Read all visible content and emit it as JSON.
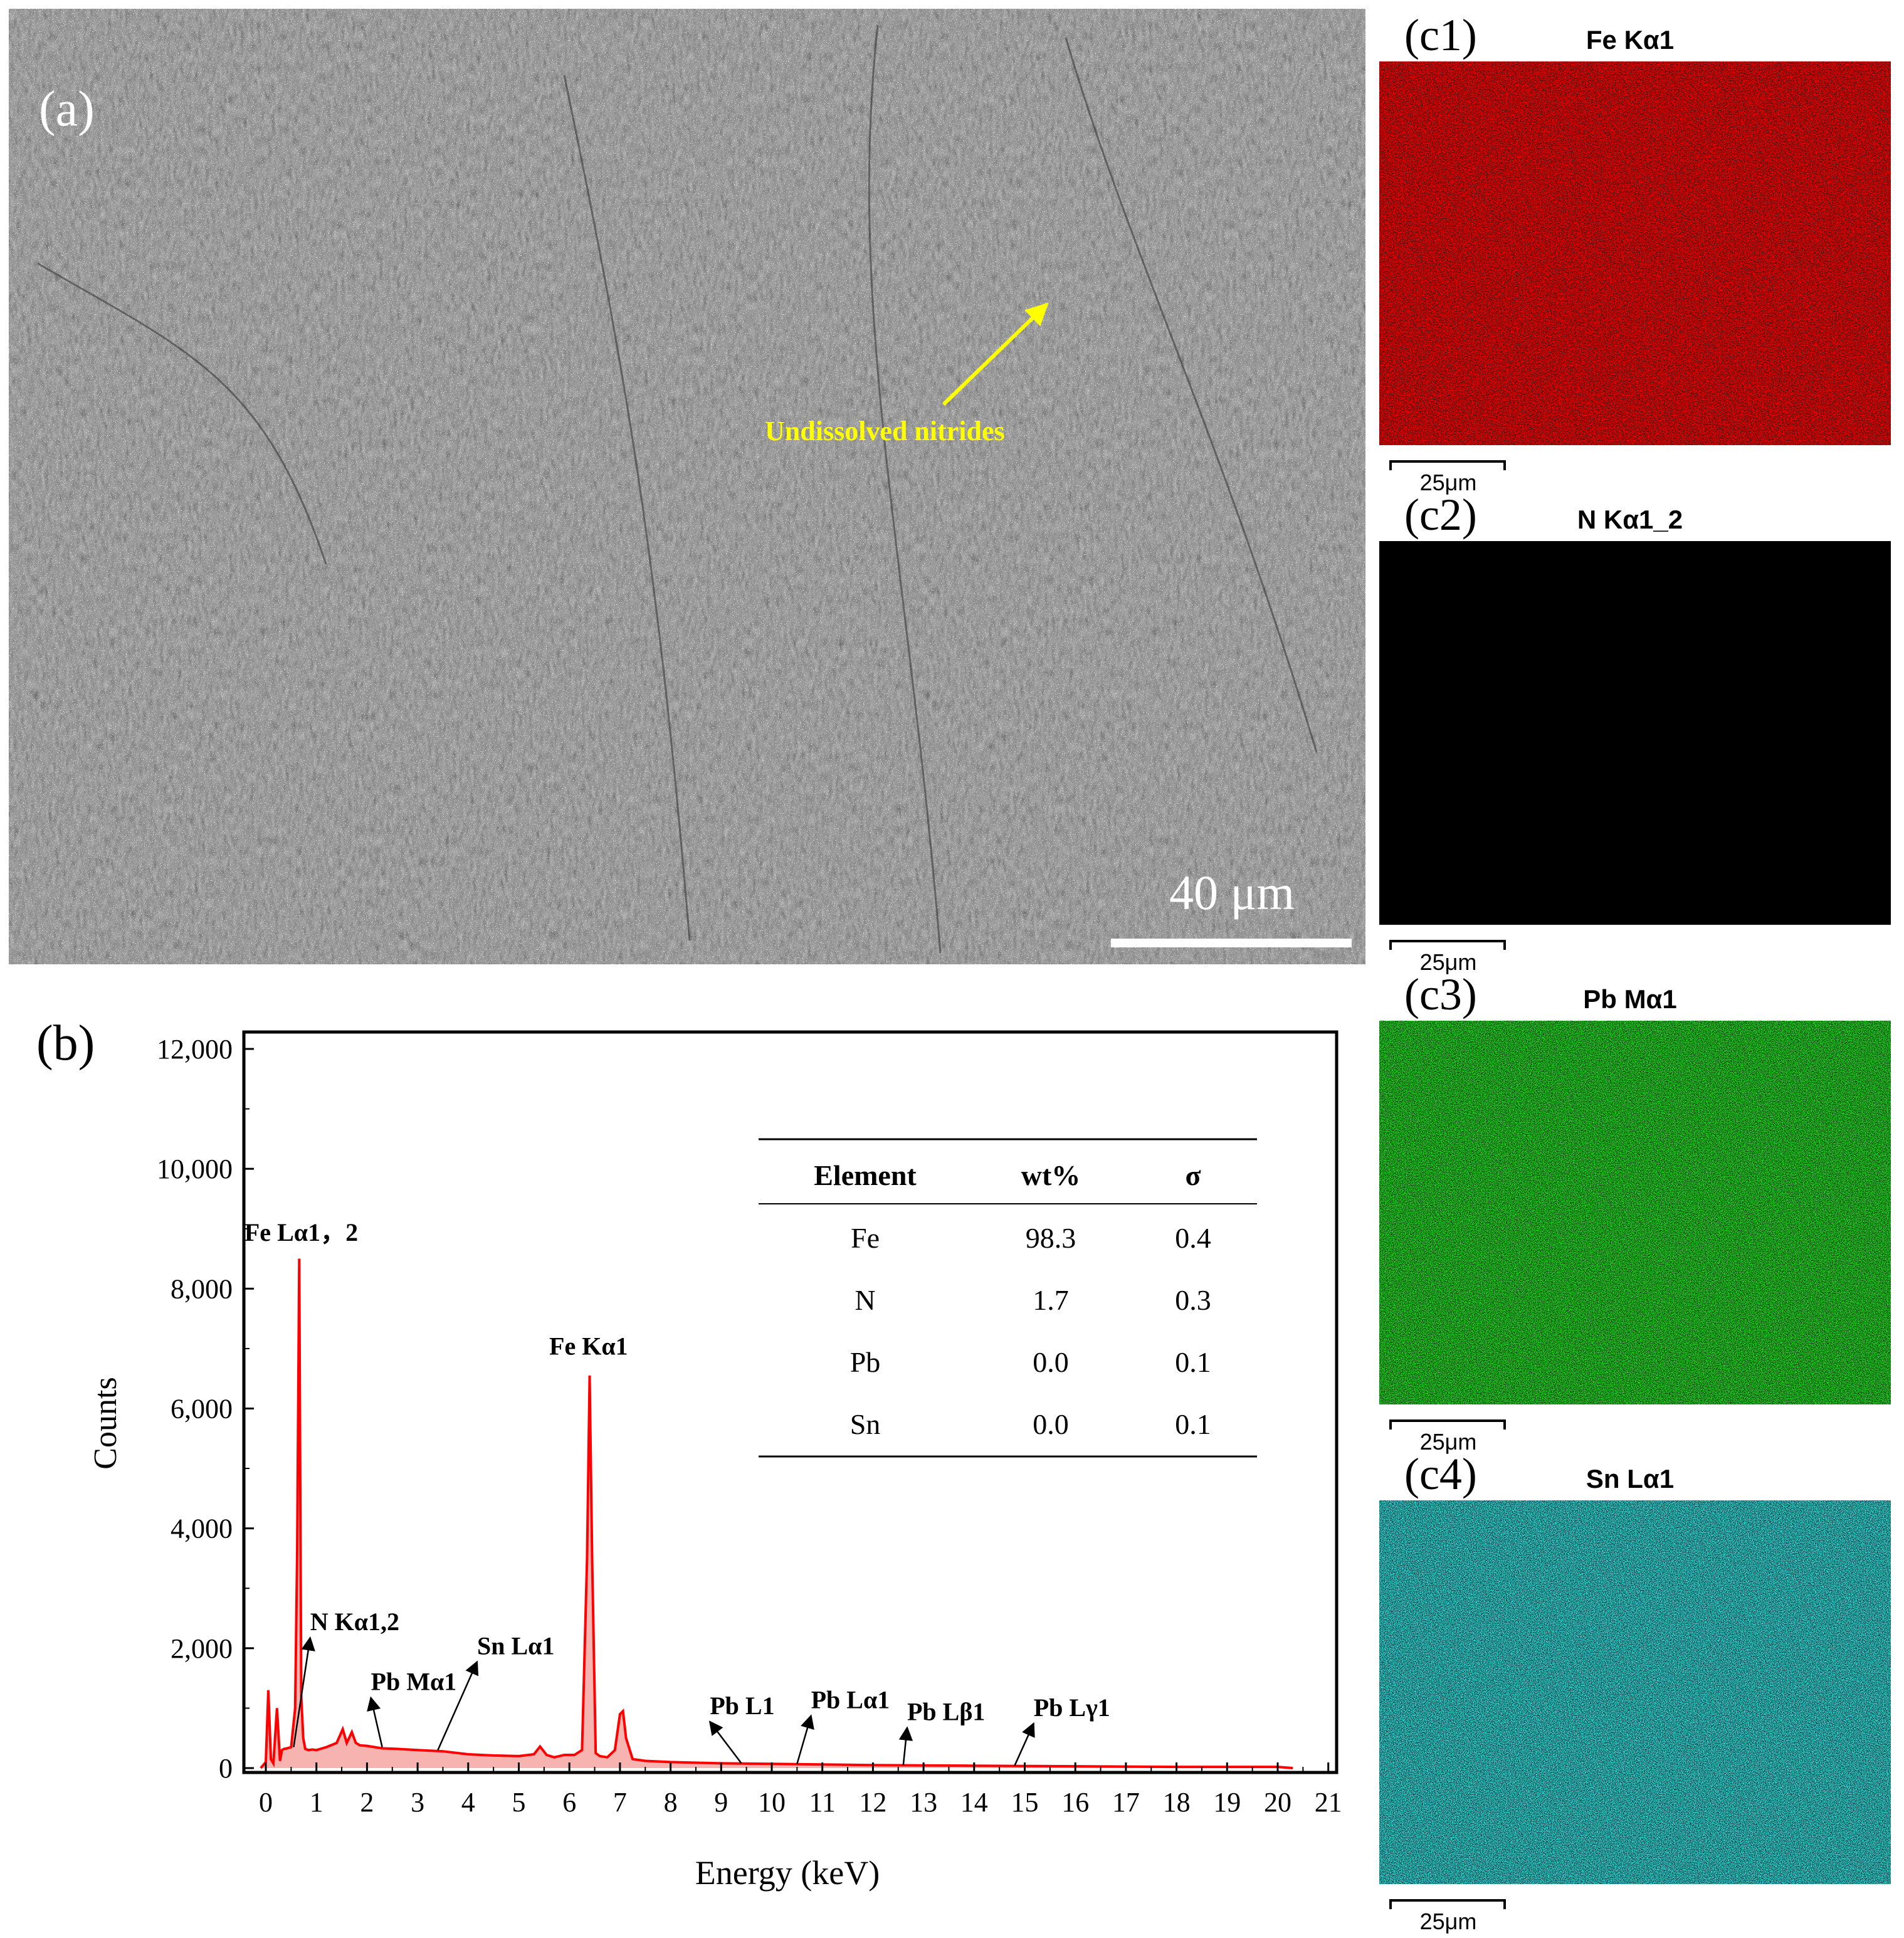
{
  "panels": {
    "a": {
      "label": "(a)",
      "annotation": "Undissolved nitrides",
      "scale_bar": "40 μm"
    },
    "b": {
      "label": "(b)"
    },
    "maps": [
      {
        "label": "(c1)",
        "element": "Fe Kα1",
        "color": "#ff0000",
        "scale_bar": "25μm"
      },
      {
        "label": "(c2)",
        "element": "N Kα1_2",
        "color": "#e6d800",
        "scale_bar": "25μm"
      },
      {
        "label": "(c3)",
        "element": "Pb Mα1",
        "color": "#22dd22",
        "scale_bar": "25μm"
      },
      {
        "label": "(c4)",
        "element": "Sn Lα1",
        "color": "#33dddd",
        "scale_bar": "25μm"
      }
    ]
  },
  "chart_data": {
    "type": "line",
    "title": "",
    "xlabel": "Energy (keV)",
    "ylabel": "Counts",
    "xlim": [
      -0.5,
      21
    ],
    "ylim": [
      0,
      12000
    ],
    "x_ticks": [
      0,
      1,
      2,
      3,
      4,
      5,
      6,
      7,
      8,
      9,
      10,
      11,
      12,
      13,
      14,
      15,
      16,
      17,
      18,
      19,
      20,
      21
    ],
    "y_ticks": [
      0,
      2000,
      4000,
      6000,
      8000,
      10000,
      12000
    ],
    "y_tick_labels": [
      "0",
      "2,000",
      "4,000",
      "6,000",
      "8,000",
      "10,000",
      "12,000"
    ],
    "series_color": "#ff0000",
    "fill_color": "#f7b3b0",
    "spectrum": {
      "x": [
        -0.1,
        0.0,
        0.05,
        0.1,
        0.15,
        0.22,
        0.28,
        0.32,
        0.36,
        0.42,
        0.5,
        0.58,
        0.62,
        0.66,
        0.7,
        0.74,
        0.78,
        0.84,
        0.92,
        1.0,
        1.2,
        1.4,
        1.52,
        1.6,
        1.7,
        1.78,
        1.86,
        2.0,
        2.3,
        2.6,
        3.0,
        3.5,
        4.0,
        4.5,
        5.0,
        5.3,
        5.42,
        5.55,
        5.7,
        5.9,
        6.1,
        6.25,
        6.35,
        6.4,
        6.45,
        6.52,
        6.6,
        6.75,
        6.9,
        7.0,
        7.06,
        7.12,
        7.25,
        7.5,
        8.0,
        9.0,
        10.0,
        11.0,
        12.0,
        13.0,
        14.0,
        15.0,
        16.0,
        17.0,
        18.0,
        19.0,
        20.0,
        20.3
      ],
      "y": [
        0,
        100,
        1300,
        150,
        80,
        1000,
        120,
        300,
        320,
        330,
        350,
        1000,
        3600,
        8500,
        1200,
        500,
        320,
        300,
        310,
        300,
        350,
        420,
        650,
        420,
        600,
        420,
        380,
        370,
        330,
        320,
        300,
        280,
        230,
        210,
        200,
        230,
        360,
        220,
        180,
        220,
        220,
        300,
        3500,
        6550,
        3500,
        250,
        200,
        180,
        300,
        900,
        950,
        500,
        150,
        120,
        100,
        80,
        70,
        60,
        50,
        45,
        40,
        35,
        30,
        25,
        20,
        20,
        20,
        0
      ]
    },
    "peak_labels": [
      {
        "text": "Fe Lα1，2",
        "x": 0.7,
        "y": 8800
      },
      {
        "text": "Fe Kα1",
        "x": 6.38,
        "y": 6900
      },
      {
        "text": "N Kα1,2",
        "x": 0.55,
        "y": 350,
        "text_x": 1.0,
        "text_y": 2300
      },
      {
        "text": "Pb Mα1",
        "x": 2.3,
        "y": 350,
        "text_x": 2.2,
        "text_y": 1300
      },
      {
        "text": "Sn Lα1",
        "x": 3.4,
        "y": 300,
        "text_x": 4.3,
        "text_y": 1900
      },
      {
        "text": "Pb L1",
        "x": 9.4,
        "y": 80,
        "text_x": 8.9,
        "text_y": 900
      },
      {
        "text": "Pb Lα1",
        "x": 10.5,
        "y": 70,
        "text_x": 10.9,
        "text_y": 1000
      },
      {
        "text": "Pb Lβ1",
        "x": 12.6,
        "y": 50,
        "text_x": 12.8,
        "text_y": 800
      },
      {
        "text": "Pb Lγ1",
        "x": 14.8,
        "y": 40,
        "text_x": 15.3,
        "text_y": 870
      }
    ],
    "table": {
      "columns": [
        "Element",
        "wt%",
        "σ"
      ],
      "rows": [
        [
          "Fe",
          "98.3",
          "0.4"
        ],
        [
          "N",
          "1.7",
          "0.3"
        ],
        [
          "Pb",
          "0.0",
          "0.1"
        ],
        [
          "Sn",
          "0.0",
          "0.1"
        ]
      ]
    }
  }
}
